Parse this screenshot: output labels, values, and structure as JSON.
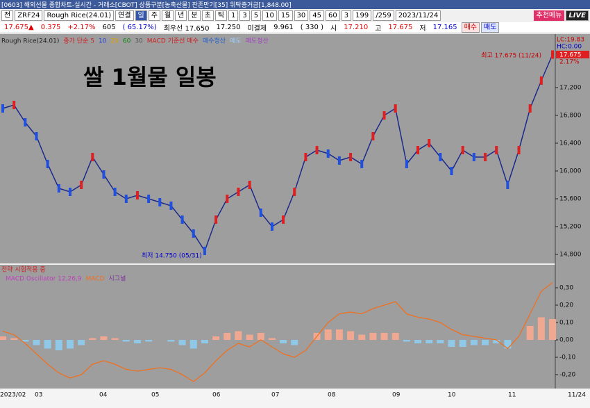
{
  "window": {
    "title": "[0603] 해외선물 종합차트-실시간 - 거래소[CBOT] 상품구분[농축산물] 잔존만기[35] 위탁증거금[1,848.00]"
  },
  "toolbar": {
    "items": [
      "전",
      "ZRF24",
      "Rough Rice(24.01)",
      "연결",
      "일",
      "주",
      "월",
      "년",
      "분",
      "초",
      "틱",
      "1",
      "3",
      "5",
      "10",
      "15",
      "30",
      "45",
      "60",
      "3",
      "199",
      "/259",
      "2023/11/24"
    ],
    "recommend": "추천메뉴",
    "live": "LIVE"
  },
  "quote": {
    "items": [
      "17.675▲",
      "0.375",
      "+2.17%",
      "605",
      "( 65.17%)",
      "최우선 17.650",
      "17.250",
      "미결제",
      "9.961",
      "( 330 )",
      "시",
      "17.210",
      "고",
      "17.675",
      "저",
      "17.165"
    ],
    "buy": "매수",
    "sell": "매도"
  },
  "chart": {
    "legend": [
      "Rough Rice(24.01)",
      "종가 단순 5",
      "10",
      "20",
      "60",
      "30",
      "MACD 기준선 매수",
      "매수청산",
      "매도",
      "매도청산"
    ],
    "overlay_title": "쌀 1월물 일봉",
    "high_label": "최고 17.675 (11/24)",
    "low_label": "최저 14.750 (05/31)",
    "lc": "LC:19.83",
    "hc": "HC:0.00",
    "last": "17.675",
    "change": "2.17%",
    "price_ticks": [
      {
        "value": 17200,
        "label": "17,200"
      },
      {
        "value": 16800,
        "label": "16,800"
      },
      {
        "value": 16400,
        "label": "16,400"
      },
      {
        "value": 16000,
        "label": "16,000"
      },
      {
        "value": 15600,
        "label": "15,600"
      },
      {
        "value": 15200,
        "label": "15,200"
      },
      {
        "value": 14800,
        "label": "14,800"
      }
    ],
    "closes": [
      16900,
      16950,
      16700,
      16500,
      16100,
      15750,
      15700,
      15800,
      16200,
      15950,
      15700,
      15600,
      15650,
      15600,
      15550,
      15500,
      15300,
      15100,
      14850,
      15300,
      15600,
      15700,
      15800,
      15400,
      15200,
      15300,
      15700,
      16200,
      16300,
      16250,
      16150,
      16200,
      16100,
      16500,
      16800,
      16900,
      16100,
      16300,
      16400,
      16200,
      16000,
      16300,
      16200,
      16200,
      16300,
      15800,
      16300,
      16900,
      17300,
      17675
    ],
    "x_labels": [
      "2023/02",
      "03",
      "04",
      "05",
      "06",
      "07",
      "08",
      "09",
      "10",
      "11",
      "11/24"
    ],
    "strategy": "전략 시험적용 중",
    "macd_legend": [
      "MACD Oscillator 12,26,9",
      "MACD",
      "시그널"
    ],
    "macd_ticks": [
      {
        "value": 0.3,
        "label": "0,30"
      },
      {
        "value": 0.2,
        "label": "0,20"
      },
      {
        "value": 0.1,
        "label": "0,10"
      },
      {
        "value": 0,
        "label": "0,00"
      },
      {
        "value": -0.1,
        "label": "-0,10"
      },
      {
        "value": -0.2,
        "label": "-0,20"
      }
    ],
    "macd": [
      0.05,
      0.03,
      -0.02,
      -0.08,
      -0.14,
      -0.19,
      -0.22,
      -0.2,
      -0.14,
      -0.12,
      -0.14,
      -0.17,
      -0.18,
      -0.17,
      -0.16,
      -0.17,
      -0.2,
      -0.24,
      -0.19,
      -0.12,
      -0.06,
      -0.02,
      -0.04,
      0,
      -0.04,
      -0.08,
      -0.1,
      -0.06,
      0.02,
      0.1,
      0.15,
      0.16,
      0.15,
      0.18,
      0.2,
      0.22,
      0.15,
      0.13,
      0.12,
      0.1,
      0.06,
      0.03,
      0.02,
      0.01,
      0,
      -0.05,
      0.02,
      0.15,
      0.28,
      0.33
    ],
    "oscillator": [
      0.02,
      0.01,
      -0.01,
      -0.03,
      -0.05,
      -0.06,
      -0.05,
      -0.03,
      0.01,
      0.02,
      0.01,
      -0.01,
      -0.02,
      -0.01,
      0,
      -0.01,
      -0.03,
      -0.05,
      -0.02,
      0.02,
      0.04,
      0.05,
      0.03,
      0.04,
      0.01,
      -0.02,
      -0.03,
      0,
      0.04,
      0.06,
      0.06,
      0.05,
      0.03,
      0.04,
      0.04,
      0.04,
      -0.01,
      -0.02,
      -0.02,
      -0.02,
      -0.04,
      -0.04,
      -0.03,
      -0.03,
      -0.02,
      -0.05,
      0,
      0.08,
      0.13,
      0.12
    ]
  }
}
